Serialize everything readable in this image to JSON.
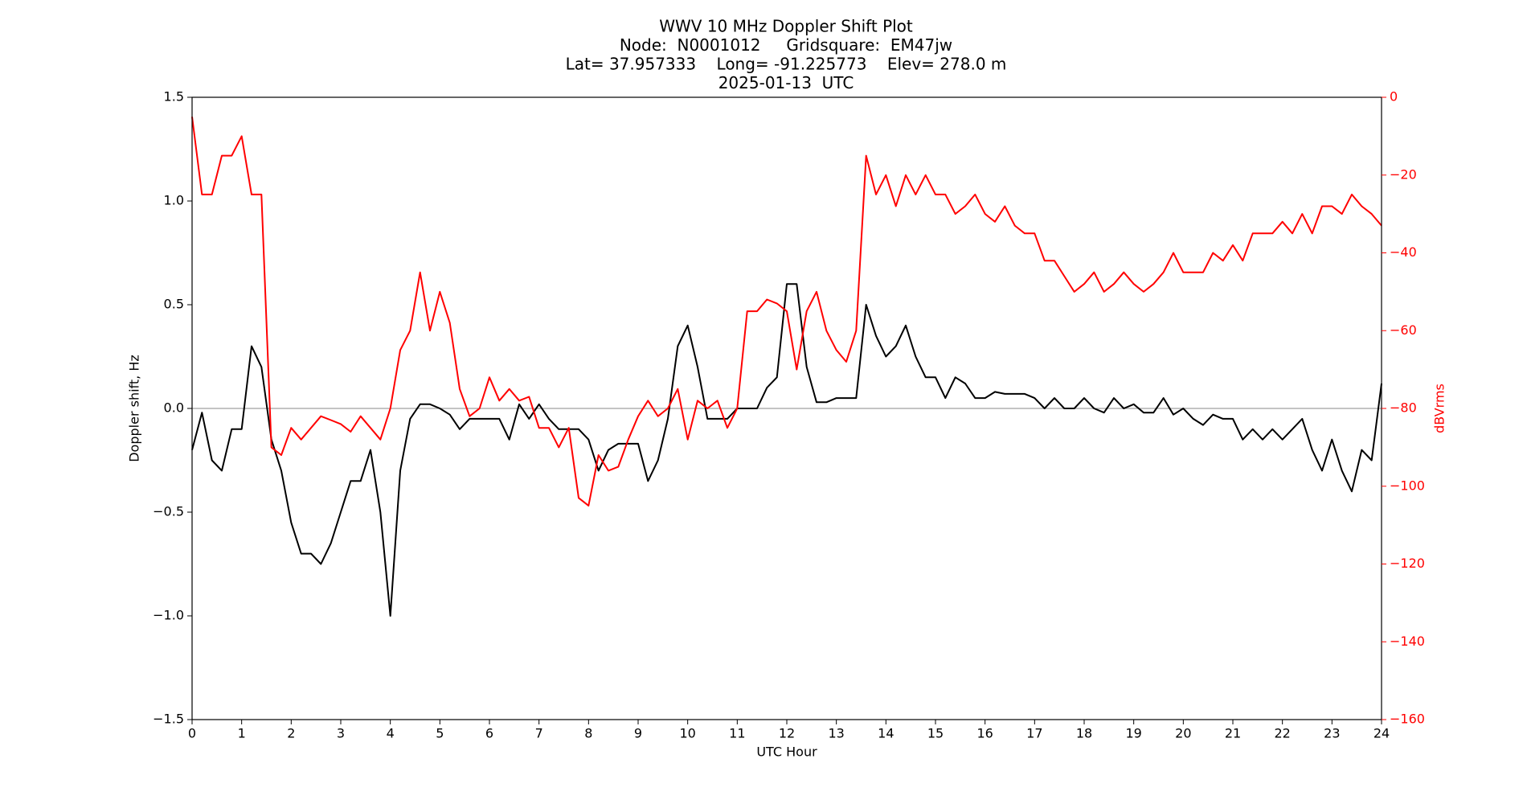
{
  "chart_data": {
    "type": "line",
    "title_lines": [
      "WWV 10 MHz Doppler Shift Plot",
      "Node:  N0001012     Gridsquare:  EM47jw",
      "Lat= 37.957333    Long= -91.225773    Elev= 278.0 m",
      "2025-01-13  UTC"
    ],
    "xlabel": "UTC Hour",
    "ylabel": "Doppler shift, Hz",
    "y2label": "dBVrms",
    "y2color": "#ff0000",
    "x": [
      0,
      0.2,
      0.4,
      0.6,
      0.8,
      1,
      1.2,
      1.4,
      1.6,
      1.8,
      2,
      2.2,
      2.4,
      2.6,
      2.8,
      3,
      3.2,
      3.4,
      3.6,
      3.8,
      4,
      4.2,
      4.4,
      4.6,
      4.8,
      5,
      5.2,
      5.4,
      5.6,
      5.8,
      6,
      6.2,
      6.4,
      6.6,
      6.8,
      7,
      7.2,
      7.4,
      7.6,
      7.8,
      8,
      8.2,
      8.4,
      8.6,
      8.8,
      9,
      9.2,
      9.4,
      9.6,
      9.8,
      10,
      10.2,
      10.4,
      10.6,
      10.8,
      11,
      11.2,
      11.4,
      11.6,
      11.8,
      12,
      12.2,
      12.4,
      12.6,
      12.8,
      13,
      13.2,
      13.4,
      13.6,
      13.8,
      14,
      14.2,
      14.4,
      14.6,
      14.8,
      15,
      15.2,
      15.4,
      15.6,
      15.8,
      16,
      16.2,
      16.4,
      16.6,
      16.8,
      17,
      17.2,
      17.4,
      17.6,
      17.8,
      18,
      18.2,
      18.4,
      18.6,
      18.8,
      19,
      19.2,
      19.4,
      19.6,
      19.8,
      20,
      20.2,
      20.4,
      20.6,
      20.8,
      21,
      21.2,
      21.4,
      21.6,
      21.8,
      22,
      22.2,
      22.4,
      22.6,
      22.8,
      23,
      23.2,
      23.4,
      23.6,
      23.8,
      24
    ],
    "series": [
      {
        "color": "#000000",
        "values": [
          -0.2,
          -0.02,
          -0.25,
          -0.3,
          -0.1,
          -0.1,
          0.3,
          0.2,
          -0.15,
          -0.3,
          -0.55,
          -0.7,
          -0.7,
          -0.75,
          -0.65,
          -0.5,
          -0.35,
          -0.35,
          -0.2,
          -0.5,
          -1.0,
          -0.3,
          -0.05,
          0.02,
          0.02,
          0.0,
          -0.03,
          -0.1,
          -0.05,
          -0.05,
          -0.05,
          -0.05,
          -0.15,
          0.02,
          -0.05,
          0.02,
          -0.05,
          -0.1,
          -0.1,
          -0.1,
          -0.15,
          -0.3,
          -0.2,
          -0.17,
          -0.17,
          -0.17,
          -0.35,
          -0.25,
          -0.05,
          0.3,
          0.4,
          0.2,
          -0.05,
          -0.05,
          -0.05,
          0.0,
          0.0,
          0.0,
          0.1,
          0.15,
          0.6,
          0.6,
          0.2,
          0.03,
          0.03,
          0.05,
          0.05,
          0.05,
          0.5,
          0.35,
          0.25,
          0.3,
          0.4,
          0.25,
          0.15,
          0.15,
          0.05,
          0.15,
          0.12,
          0.05,
          0.05,
          0.08,
          0.07,
          0.07,
          0.07,
          0.05,
          0.0,
          0.05,
          0.0,
          0.0,
          0.05,
          0.0,
          -0.02,
          0.05,
          0.0,
          0.02,
          -0.02,
          -0.02,
          0.05,
          -0.03,
          0.0,
          -0.05,
          -0.08,
          -0.03,
          -0.05,
          -0.05,
          -0.15,
          -0.1,
          -0.15,
          -0.1,
          -0.15,
          -0.1,
          -0.05,
          -0.2,
          -0.3,
          -0.15,
          -0.3,
          -0.4,
          -0.2,
          -0.25,
          0.12
        ]
      },
      {
        "color": "#ff0000",
        "axis": "y2",
        "values": [
          -5,
          -25,
          -25,
          -15,
          -15,
          -10,
          -25,
          -25,
          -90,
          -92,
          -85,
          -88,
          -85,
          -82,
          -83,
          -84,
          -86,
          -82,
          -85,
          -88,
          -80,
          -65,
          -60,
          -45,
          -60,
          -50,
          -58,
          -75,
          -82,
          -80,
          -72,
          -78,
          -75,
          -78,
          -77,
          -85,
          -85,
          -90,
          -85,
          -103,
          -105,
          -92,
          -96,
          -95,
          -88,
          -82,
          -78,
          -82,
          -80,
          -75,
          -88,
          -78,
          -80,
          -78,
          -85,
          -80,
          -55,
          -55,
          -52,
          -53,
          -55,
          -70,
          -55,
          -50,
          -60,
          -65,
          -68,
          -60,
          -15,
          -25,
          -20,
          -28,
          -20,
          -25,
          -20,
          -25,
          -25,
          -30,
          -28,
          -25,
          -30,
          -32,
          -28,
          -33,
          -35,
          -35,
          -42,
          -42,
          -46,
          -50,
          -48,
          -45,
          -50,
          -48,
          -45,
          -48,
          -50,
          -48,
          -45,
          -40,
          -45,
          -45,
          -45,
          -40,
          -42,
          -38,
          -42,
          -35,
          -35,
          -35,
          -32,
          -35,
          -30,
          -35,
          -28,
          -28,
          -30,
          -25,
          -28,
          -30,
          -33
        ]
      }
    ],
    "hline": 0,
    "hline_color": "#a0a0a0",
    "xlim": [
      0,
      24
    ],
    "xticks": [
      0,
      1,
      2,
      3,
      4,
      5,
      6,
      7,
      8,
      9,
      10,
      11,
      12,
      13,
      14,
      15,
      16,
      17,
      18,
      19,
      20,
      21,
      22,
      23,
      24
    ],
    "ylim": [
      -1.5,
      1.5
    ],
    "yticks": [
      {
        "value": -1.5,
        "label": "−1.5"
      },
      {
        "value": -1.0,
        "label": "−1.0"
      },
      {
        "value": -0.5,
        "label": "−0.5"
      },
      {
        "value": 0,
        "label": "0.0"
      },
      0.5,
      {
        "value": 1.0,
        "label": "1.0"
      },
      1.5
    ],
    "y2lim": [
      -160,
      0
    ],
    "y2ticks": [
      {
        "value": -160,
        "label": "−160"
      },
      {
        "value": -140,
        "label": "−140"
      },
      {
        "value": -120,
        "label": "−120"
      },
      {
        "value": -100,
        "label": "−100"
      },
      {
        "value": -80,
        "label": "−80"
      },
      {
        "value": -60,
        "label": "−60"
      },
      {
        "value": -40,
        "label": "−40"
      },
      {
        "value": -20,
        "label": "−20"
      },
      0
    ]
  }
}
